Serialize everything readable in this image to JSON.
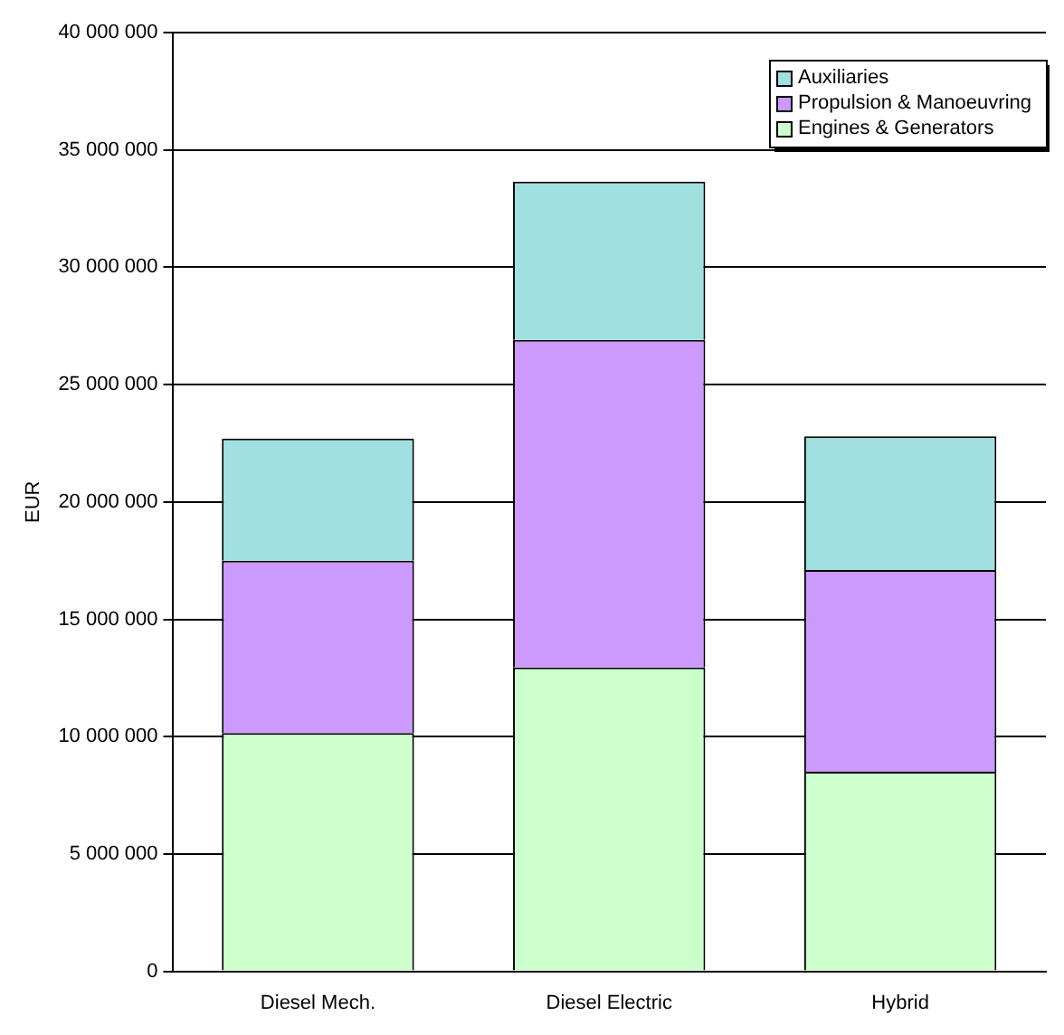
{
  "chart_data": {
    "type": "bar",
    "stacked": true,
    "ylabel": "EUR",
    "categories": [
      "Diesel Mech.",
      "Diesel Electric",
      "Hybrid"
    ],
    "series": [
      {
        "name": "Engines & Generators",
        "color": "#ccffcc",
        "values": [
          10150000,
          12950000,
          8500000
        ]
      },
      {
        "name": "Propulsion & Manoeuvring",
        "color": "#cc99ff",
        "values": [
          7350000,
          13950000,
          8600000
        ]
      },
      {
        "name": "Auxiliaries",
        "color": "#a0e0e0",
        "values": [
          5200000,
          6750000,
          5700000
        ]
      }
    ],
    "ylim": [
      0,
      40000000
    ],
    "yticks": [
      {
        "value": 0,
        "label": "0"
      },
      {
        "value": 5000000,
        "label": "5 000 000"
      },
      {
        "value": 10000000,
        "label": "10 000 000"
      },
      {
        "value": 15000000,
        "label": "15 000 000"
      },
      {
        "value": 20000000,
        "label": "20 000 000"
      },
      {
        "value": 25000000,
        "label": "25 000 000"
      },
      {
        "value": 30000000,
        "label": "30 000 000"
      },
      {
        "value": 35000000,
        "label": "35 000 000"
      },
      {
        "value": 40000000,
        "label": "40 000 000"
      }
    ],
    "grid": "y",
    "legend": "top right"
  }
}
